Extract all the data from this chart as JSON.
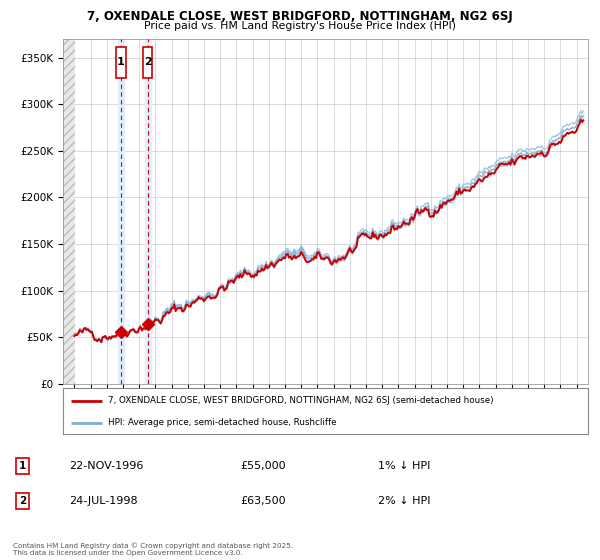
{
  "title_line1": "7, OXENDALE CLOSE, WEST BRIDGFORD, NOTTINGHAM, NG2 6SJ",
  "title_line2": "Price paid vs. HM Land Registry's House Price Index (HPI)",
  "legend_label1": "7, OXENDALE CLOSE, WEST BRIDGFORD, NOTTINGHAM, NG2 6SJ (semi-detached house)",
  "legend_label2": "HPI: Average price, semi-detached house, Rushcliffe",
  "sale1_date": "22-NOV-1996",
  "sale1_price": 55000,
  "sale1_label": "£55,000",
  "sale1_pct": "1% ↓ HPI",
  "sale2_date": "24-JUL-1998",
  "sale2_price": 63500,
  "sale2_label": "£63,500",
  "sale2_pct": "2% ↓ HPI",
  "footer": "Contains HM Land Registry data © Crown copyright and database right 2025.\nThis data is licensed under the Open Government Licence v3.0.",
  "line_color_red": "#CC0000",
  "line_color_blue": "#7BAFD4",
  "bg_color": "#FFFFFF",
  "grid_color": "#CCCCCC",
  "vline_color": "#CC0000",
  "vshade_color": "#DDEEFF",
  "ylim": [
    0,
    370000
  ],
  "yticks": [
    0,
    50000,
    100000,
    150000,
    200000,
    250000,
    300000,
    350000
  ],
  "sale1_x": 1996.88,
  "sale2_x": 1998.54
}
